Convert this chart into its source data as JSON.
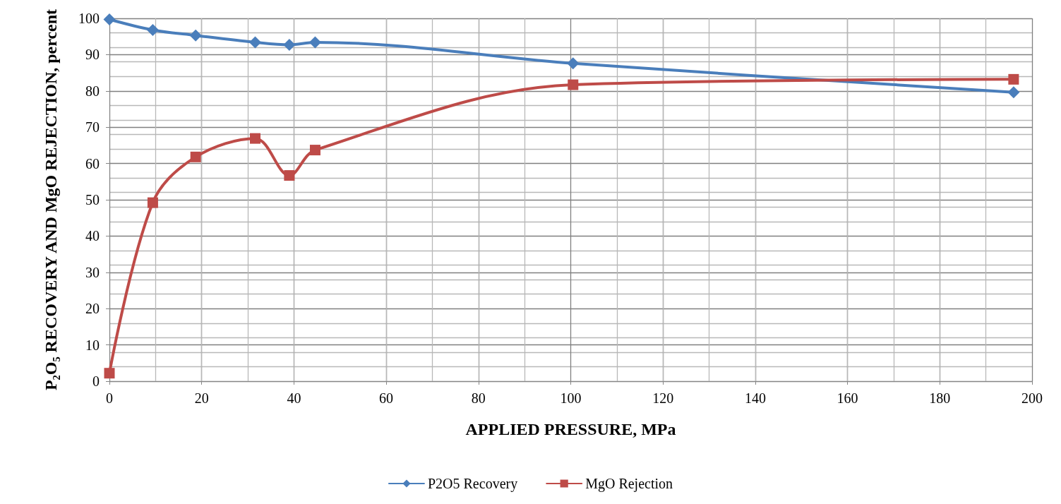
{
  "chart_data": {
    "type": "line",
    "xlabel": "APPLIED PRESSURE, MPa",
    "ylabel": "P₂O₅ RECOVERY AND MgO REJECTION, percent",
    "x": [
      0,
      9.4,
      18.7,
      31.6,
      39,
      44.6,
      100.5,
      196
    ],
    "series": [
      {
        "name": "P2O5 Recovery",
        "color": "#4a7ebb",
        "marker": "diamond",
        "values": [
          99.7,
          96.8,
          95.3,
          93.4,
          92.7,
          93.4,
          87.6,
          79.6
        ]
      },
      {
        "name": "MgO Rejection",
        "color": "#be4b48",
        "marker": "square",
        "values": [
          2.2,
          49.2,
          61.8,
          66.9,
          56.7,
          63.7,
          81.7,
          83.2
        ]
      }
    ],
    "xlim": [
      0,
      200
    ],
    "xticks": [
      0,
      20,
      40,
      60,
      80,
      100,
      120,
      140,
      160,
      180,
      200
    ],
    "ylim": [
      0,
      100
    ],
    "yticks": [
      0,
      10,
      20,
      30,
      40,
      50,
      60,
      70,
      80,
      90,
      100
    ],
    "grid": true,
    "legend": "bottom"
  }
}
